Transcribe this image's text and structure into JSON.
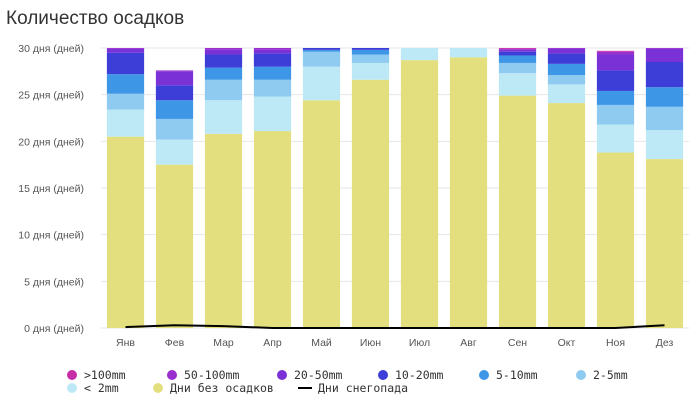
{
  "chart_data": {
    "type": "bar",
    "stacked": true,
    "title": "Количество осадков",
    "xlabel": "",
    "ylabel": "",
    "ylim": [
      0,
      30
    ],
    "yticks": [
      0,
      5,
      10,
      15,
      20,
      25,
      30
    ],
    "ytick_labels": [
      "0 дня (дней)",
      "5 дня (дней)",
      "10 дня (дней)",
      "15 дня (дней)",
      "20 дня (дней)",
      "25 дня (дней)",
      "30 дня (дней)"
    ],
    "grid": true,
    "legend_position": "bottom",
    "categories": [
      "Янв",
      "Фев",
      "Мар",
      "Апр",
      "Май",
      "Июн",
      "Июл",
      "Авг",
      "Сен",
      "Окт",
      "Ноя",
      "Дез"
    ],
    "series": [
      {
        "name": "Дни без осадков",
        "color": "#e4df7e",
        "values": [
          20.5,
          17.5,
          20.8,
          21.1,
          24.4,
          26.6,
          28.7,
          29.0,
          24.9,
          24.1,
          18.8,
          18.1
        ]
      },
      {
        "name": "< 2mm",
        "color": "#bde8f6",
        "values": [
          2.9,
          2.7,
          3.6,
          3.7,
          3.6,
          1.8,
          1.3,
          1.0,
          2.4,
          2.0,
          3.0,
          3.1
        ]
      },
      {
        "name": "2-5mm",
        "color": "#8fcbf0",
        "values": [
          1.7,
          2.2,
          2.2,
          1.8,
          1.6,
          0.9,
          0.0,
          0.0,
          1.1,
          1.0,
          2.1,
          2.5
        ]
      },
      {
        "name": "5-10mm",
        "color": "#3d96e6",
        "values": [
          2.1,
          2.0,
          1.3,
          1.4,
          0.2,
          0.5,
          0.0,
          0.0,
          0.8,
          1.2,
          1.5,
          2.1
        ]
      },
      {
        "name": "10-20mm",
        "color": "#3d3dd8",
        "values": [
          2.3,
          1.6,
          1.4,
          1.4,
          0.2,
          0.2,
          0.0,
          0.0,
          0.4,
          1.1,
          2.2,
          2.7
        ]
      },
      {
        "name": "20-50mm",
        "color": "#7a32d6",
        "values": [
          0.4,
          1.5,
          0.5,
          0.4,
          0.0,
          0.0,
          0.0,
          0.0,
          0.2,
          0.5,
          1.7,
          1.4
        ]
      },
      {
        "name": "50-100mm",
        "color": "#9a2fd0",
        "values": [
          0.1,
          0.1,
          0.2,
          0.2,
          0.0,
          0.0,
          0.0,
          0.0,
          0.1,
          0.1,
          0.3,
          0.1
        ]
      },
      {
        "name": ">100mm",
        "color": "#c72fa8",
        "values": [
          0.0,
          0.0,
          0.0,
          0.0,
          0.0,
          0.0,
          0.0,
          0.0,
          0.1,
          0.0,
          0.1,
          0.0
        ]
      }
    ],
    "snow_line": {
      "name": "Дни снегопада",
      "color": "#000000",
      "values": [
        0.1,
        0.3,
        0.2,
        0.0,
        0.0,
        0.0,
        0.0,
        0.0,
        0.0,
        0.0,
        0.0,
        0.3
      ]
    },
    "legend": [
      {
        "label": ">100mm",
        "kind": "dot",
        "color": "#c72fa8"
      },
      {
        "label": "50-100mm",
        "kind": "dot",
        "color": "#9a2fd0"
      },
      {
        "label": "20-50mm",
        "kind": "dot",
        "color": "#7a32d6"
      },
      {
        "label": "10-20mm",
        "kind": "dot",
        "color": "#3d3dd8"
      },
      {
        "label": "5-10mm",
        "kind": "dot",
        "color": "#3d96e6"
      },
      {
        "label": "2-5mm",
        "kind": "dot",
        "color": "#8fcbf0"
      },
      {
        "label": "< 2mm",
        "kind": "dot",
        "color": "#bde8f6"
      },
      {
        "label": "Дни без осадков",
        "kind": "dot",
        "color": "#e4df7e"
      },
      {
        "label": "Дни снегопада",
        "kind": "line",
        "color": "#000000"
      }
    ]
  }
}
